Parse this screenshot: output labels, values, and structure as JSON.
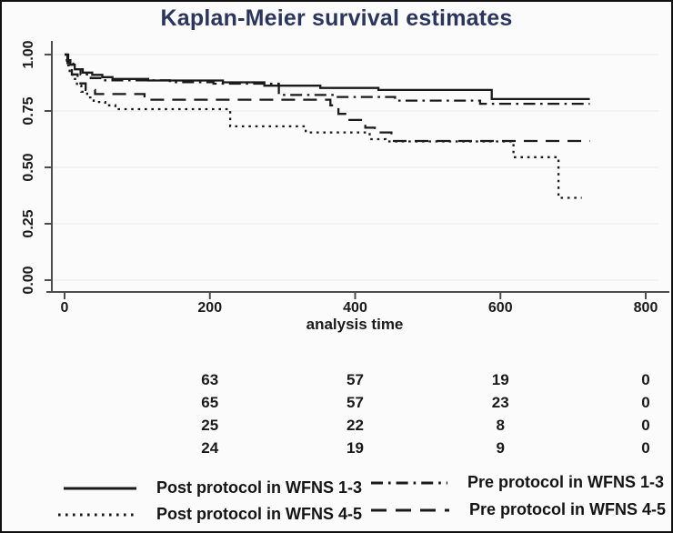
{
  "colors": {
    "title": "#2a3560",
    "curve": "#1a1a1a",
    "axis": "#4d4d4d",
    "grid": "#ececec",
    "text": "#1a1a1a",
    "plot_background": "#fbfbfb",
    "frame_border": "#111111"
  },
  "chart_data": {
    "type": "line",
    "subtype": "kaplan-meier-step",
    "title": "Kaplan-Meier survival estimates",
    "xlabel": "analysis time",
    "ylabel": "",
    "xlim": [
      0,
      800
    ],
    "ylim": [
      0.0,
      1.0
    ],
    "grid": "horizontal",
    "legend_position": "bottom",
    "xticks": [
      {
        "v": 0,
        "label": "0"
      },
      {
        "v": 200,
        "label": "200"
      },
      {
        "v": 400,
        "label": "400"
      },
      {
        "v": 600,
        "label": "600"
      },
      {
        "v": 800,
        "label": "800"
      }
    ],
    "yticks": [
      {
        "v": 0.0,
        "label": "0.00"
      },
      {
        "v": 0.25,
        "label": "0.25"
      },
      {
        "v": 0.5,
        "label": "0.50"
      },
      {
        "v": 0.75,
        "label": "0.75"
      },
      {
        "v": 1.0,
        "label": "1.00"
      }
    ],
    "series": [
      {
        "name": "Post protocol in WFNS 1-3",
        "style": "solid",
        "points": [
          [
            0,
            1.0
          ],
          [
            4,
            0.975
          ],
          [
            8,
            0.955
          ],
          [
            14,
            0.935
          ],
          [
            25,
            0.92
          ],
          [
            38,
            0.91
          ],
          [
            52,
            0.9
          ],
          [
            66,
            0.892
          ],
          [
            115,
            0.885
          ],
          [
            218,
            0.877
          ],
          [
            275,
            0.862
          ],
          [
            352,
            0.852
          ],
          [
            432,
            0.843
          ],
          [
            588,
            0.803
          ],
          [
            723,
            0.803
          ]
        ]
      },
      {
        "name": "Pre protocol in WFNS 1-3",
        "style": "dashdot",
        "points": [
          [
            0,
            1.0
          ],
          [
            5,
            0.965
          ],
          [
            12,
            0.935
          ],
          [
            22,
            0.912
          ],
          [
            36,
            0.896
          ],
          [
            52,
            0.886
          ],
          [
            145,
            0.878
          ],
          [
            205,
            0.871
          ],
          [
            295,
            0.821
          ],
          [
            372,
            0.812
          ],
          [
            455,
            0.796
          ],
          [
            572,
            0.782
          ],
          [
            723,
            0.782
          ]
        ]
      },
      {
        "name": "Post protocol in WFNS 4-5",
        "style": "dotted",
        "points": [
          [
            0,
            1.0
          ],
          [
            3,
            0.952
          ],
          [
            7,
            0.922
          ],
          [
            11,
            0.892
          ],
          [
            17,
            0.862
          ],
          [
            23,
            0.835
          ],
          [
            31,
            0.81
          ],
          [
            40,
            0.79
          ],
          [
            56,
            0.775
          ],
          [
            70,
            0.758
          ],
          [
            228,
            0.682
          ],
          [
            332,
            0.655
          ],
          [
            420,
            0.625
          ],
          [
            442,
            0.615
          ],
          [
            618,
            0.545
          ],
          [
            680,
            0.365
          ],
          [
            712,
            0.365
          ]
        ]
      },
      {
        "name": "Pre protocol in WFNS 4-5",
        "style": "longdash",
        "points": [
          [
            0,
            1.0
          ],
          [
            4,
            0.962
          ],
          [
            10,
            0.912
          ],
          [
            18,
            0.872
          ],
          [
            29,
            0.843
          ],
          [
            42,
            0.825
          ],
          [
            110,
            0.8
          ],
          [
            366,
            0.775
          ],
          [
            377,
            0.737
          ],
          [
            388,
            0.71
          ],
          [
            414,
            0.676
          ],
          [
            427,
            0.655
          ],
          [
            450,
            0.617
          ],
          [
            723,
            0.617
          ]
        ]
      }
    ],
    "risk_table": {
      "time_points": [
        200,
        400,
        600,
        800
      ],
      "rows": [
        [
          63,
          57,
          19,
          0
        ],
        [
          65,
          57,
          23,
          0
        ],
        [
          25,
          22,
          8,
          0
        ],
        [
          24,
          19,
          9,
          0
        ]
      ]
    }
  }
}
